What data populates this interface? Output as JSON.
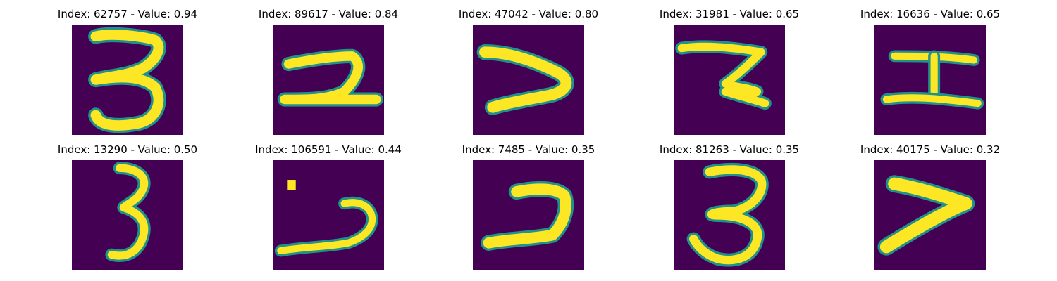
{
  "colormap": {
    "background": "#440154",
    "mid": "#21918c",
    "high": "#fde725"
  },
  "panels": [
    {
      "title": "Index: 62757 - Value: 0.94",
      "glyph": "three-icon"
    },
    {
      "title": "Index: 89617 - Value: 0.84",
      "glyph": "two-icon"
    },
    {
      "title": "Index: 47042 - Value: 0.80",
      "glyph": "greater-than-icon"
    },
    {
      "title": "Index: 31981 - Value: 0.65",
      "glyph": "z-icon"
    },
    {
      "title": "Index: 16636 - Value: 0.65",
      "glyph": "i-beam-icon"
    },
    {
      "title": "Index: 13290 - Value: 0.50",
      "glyph": "three-icon"
    },
    {
      "title": "Index: 106591 - Value: 0.44",
      "glyph": "dotted-two-icon"
    },
    {
      "title": "Index: 7485 - Value: 0.35",
      "glyph": "reverse-c-icon"
    },
    {
      "title": "Index: 81263 - Value: 0.35",
      "glyph": "three-icon"
    },
    {
      "title": "Index: 40175 - Value: 0.32",
      "glyph": "greater-than-icon"
    }
  ]
}
